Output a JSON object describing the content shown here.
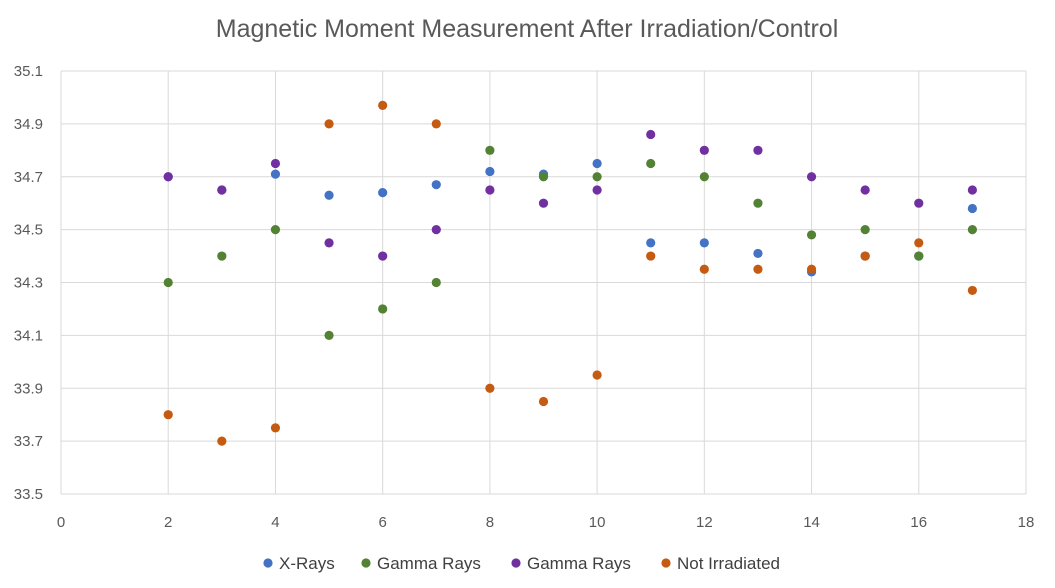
{
  "chart_data": {
    "type": "scatter",
    "title": "Magnetic Moment Measurement After Irradiation/Control",
    "xlabel": "",
    "ylabel": "",
    "xlim": [
      0,
      18
    ],
    "ylim": [
      33.5,
      35.1
    ],
    "x_ticks": [
      "0",
      "2",
      "4",
      "6",
      "8",
      "10",
      "12",
      "14",
      "16",
      "18"
    ],
    "y_ticks": [
      "33.5",
      "33.7",
      "33.9",
      "34.1",
      "34.3",
      "34.5",
      "34.7",
      "34.9",
      "35.1"
    ],
    "grid": true,
    "legend_position": "bottom",
    "series": [
      {
        "name": "X-Rays",
        "color": "#4472C4",
        "points": [
          [
            2,
            34.7
          ],
          [
            3,
            34.65
          ],
          [
            4,
            34.71
          ],
          [
            5,
            34.63
          ],
          [
            6,
            34.64
          ],
          [
            7,
            34.67
          ],
          [
            8,
            34.72
          ],
          [
            9,
            34.71
          ],
          [
            10,
            34.75
          ],
          [
            11,
            34.45
          ],
          [
            12,
            34.45
          ],
          [
            13,
            34.41
          ],
          [
            14,
            34.34
          ],
          [
            15,
            34.4
          ],
          [
            16,
            34.4
          ],
          [
            17,
            34.58
          ]
        ]
      },
      {
        "name": "Gamma Rays",
        "color": "#548235",
        "points": [
          [
            2,
            34.3
          ],
          [
            3,
            34.4
          ],
          [
            4,
            34.5
          ],
          [
            5,
            34.1
          ],
          [
            6,
            34.2
          ],
          [
            7,
            34.3
          ],
          [
            8,
            34.8
          ],
          [
            9,
            34.7
          ],
          [
            10,
            34.7
          ],
          [
            11,
            34.75
          ],
          [
            12,
            34.7
          ],
          [
            13,
            34.6
          ],
          [
            14,
            34.48
          ],
          [
            15,
            34.5
          ],
          [
            16,
            34.4
          ],
          [
            17,
            34.5
          ]
        ]
      },
      {
        "name": "Gamma Rays",
        "color": "#7030A0",
        "points": [
          [
            2,
            34.7
          ],
          [
            3,
            34.65
          ],
          [
            4,
            34.75
          ],
          [
            5,
            34.45
          ],
          [
            6,
            34.4
          ],
          [
            7,
            34.5
          ],
          [
            8,
            34.65
          ],
          [
            9,
            34.6
          ],
          [
            10,
            34.65
          ],
          [
            11,
            34.86
          ],
          [
            12,
            34.8
          ],
          [
            13,
            34.8
          ],
          [
            14,
            34.7
          ],
          [
            15,
            34.65
          ],
          [
            16,
            34.6
          ],
          [
            17,
            34.65
          ]
        ]
      },
      {
        "name": "Not Irradiated",
        "color": "#C55A11",
        "points": [
          [
            2,
            33.8
          ],
          [
            3,
            33.7
          ],
          [
            4,
            33.75
          ],
          [
            5,
            34.9
          ],
          [
            6,
            34.97
          ],
          [
            7,
            34.9
          ],
          [
            8,
            33.9
          ],
          [
            9,
            33.85
          ],
          [
            10,
            33.95
          ],
          [
            11,
            34.4
          ],
          [
            12,
            34.35
          ],
          [
            13,
            34.35
          ],
          [
            14,
            34.35
          ],
          [
            15,
            34.4
          ],
          [
            16,
            34.45
          ],
          [
            17,
            34.27
          ]
        ]
      }
    ]
  }
}
